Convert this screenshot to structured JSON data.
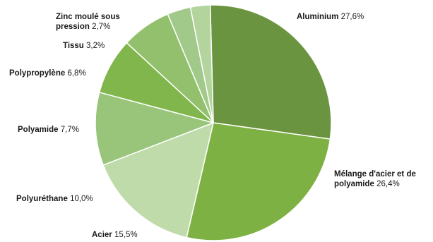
{
  "chart_data": {
    "type": "pie",
    "title": "",
    "slices": [
      {
        "label": "Aluminium",
        "name_lines": [
          "Aluminium"
        ],
        "value": 27.6,
        "value_label": "27,6%",
        "color": "#6a9440"
      },
      {
        "label": "Mélange d'acier et de polyamide",
        "name_lines": [
          "Mélange d'acier et de",
          "polyamide"
        ],
        "value": 26.4,
        "value_label": "26,4%",
        "color": "#7db143"
      },
      {
        "label": "Acier",
        "name_lines": [
          "Acier"
        ],
        "value": 15.5,
        "value_label": "15,5%",
        "color": "#c0dbaa"
      },
      {
        "label": "Polyuréthane",
        "name_lines": [
          "Polyuréthane"
        ],
        "value": 10.0,
        "value_label": "10,0%",
        "color": "#98c57a"
      },
      {
        "label": "Polyamide",
        "name_lines": [
          "Polyamide"
        ],
        "value": 7.7,
        "value_label": "7,7%",
        "color": "#80b64b"
      },
      {
        "label": "Polypropylène",
        "name_lines": [
          "Polypropylène"
        ],
        "value": 6.8,
        "value_label": "6,8%",
        "color": "#92c06c"
      },
      {
        "label": "Tissu",
        "name_lines": [
          "Tissu"
        ],
        "value": 3.2,
        "value_label": "3,2%",
        "color": "#a1c98a"
      },
      {
        "label": "Zinc moulé sous pression",
        "name_lines": [
          "Zinc moulé sous",
          "pression"
        ],
        "value": 2.7,
        "value_label": "2,7%",
        "color": "#b4d49e"
      }
    ],
    "start_angle_deg": -1.5,
    "direction": "clockwise",
    "legend": "none",
    "label_placement": "outside"
  }
}
